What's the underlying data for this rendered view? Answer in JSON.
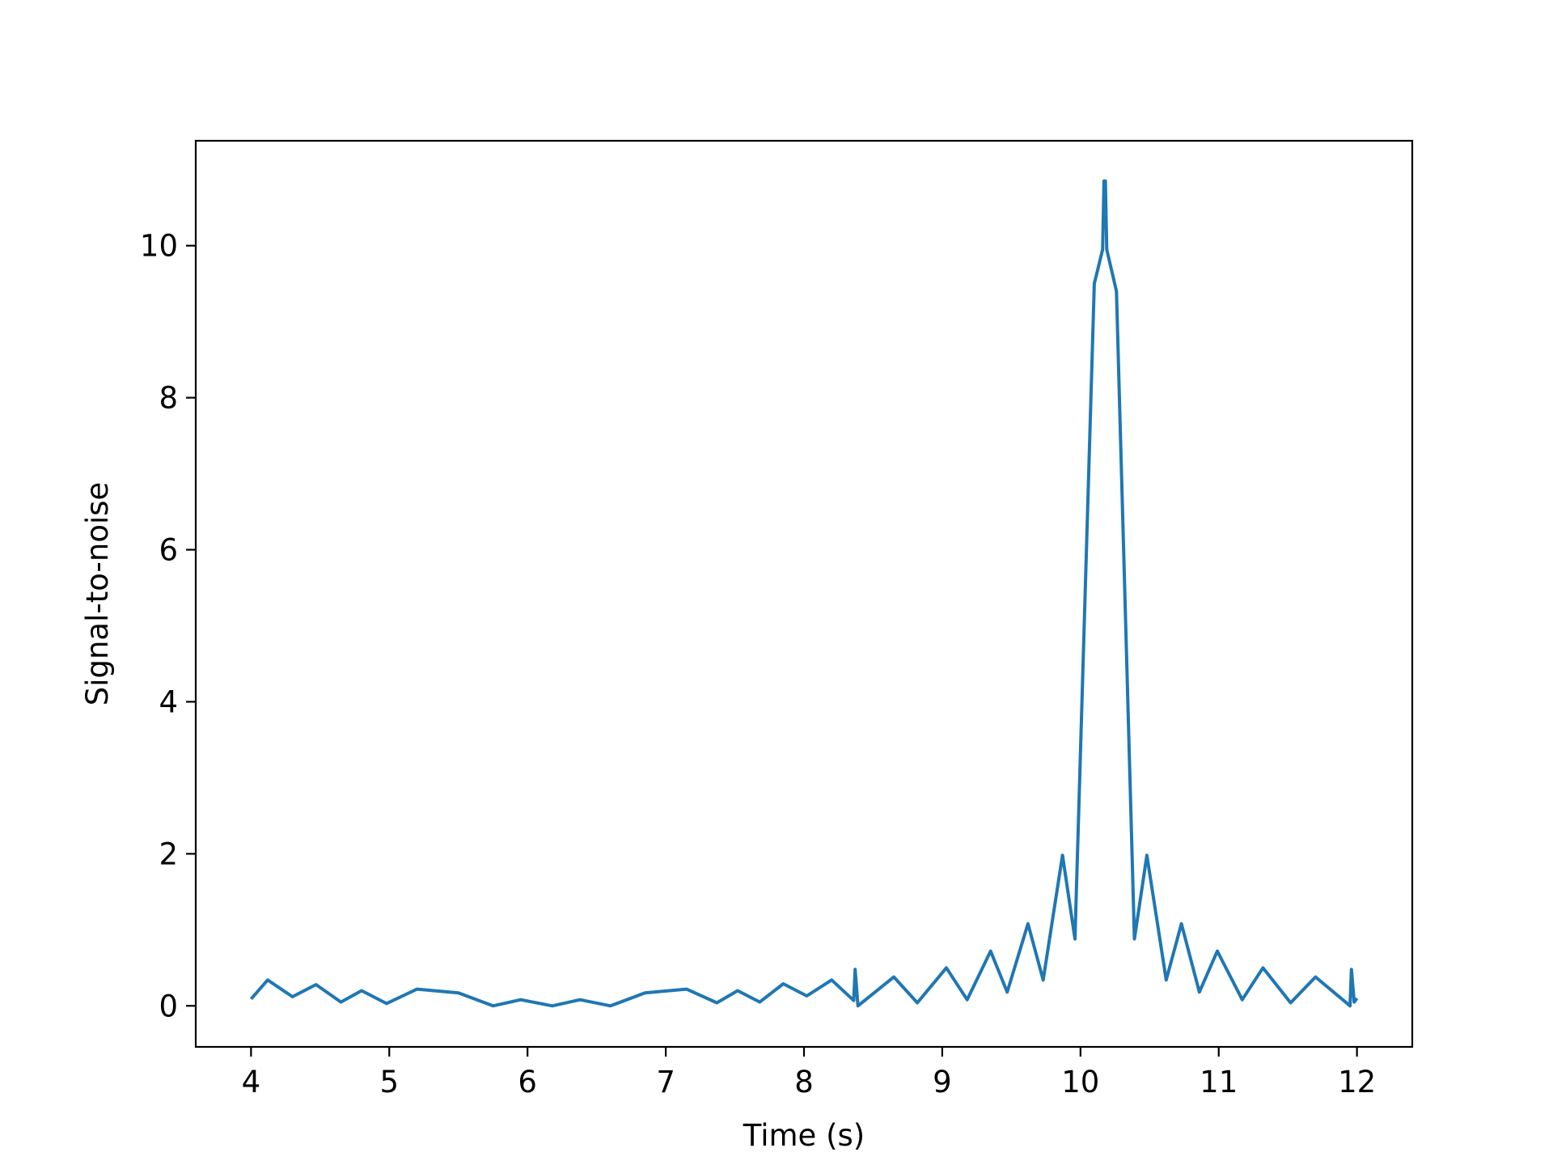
{
  "chart_data": {
    "type": "line",
    "title": "",
    "xlabel": "Time (s)",
    "ylabel": "Signal-to-noise",
    "xlim": [
      3.6,
      12.4
    ],
    "ylim": [
      -0.54,
      11.38
    ],
    "xticks": [
      4,
      5,
      6,
      7,
      8,
      9,
      10,
      11,
      12
    ],
    "yticks": [
      0,
      2,
      4,
      6,
      8,
      10
    ],
    "grid": false,
    "legend": "none",
    "series": [
      {
        "color": "#1f77b4",
        "points": [
          [
            4.0,
            0.09
          ],
          [
            4.12,
            0.34
          ],
          [
            4.3,
            0.12
          ],
          [
            4.47,
            0.28
          ],
          [
            4.65,
            0.05
          ],
          [
            4.8,
            0.2
          ],
          [
            4.98,
            0.03
          ],
          [
            5.2,
            0.22
          ],
          [
            5.5,
            0.17
          ],
          [
            5.75,
            0.0
          ],
          [
            5.95,
            0.08
          ],
          [
            6.18,
            0.0
          ],
          [
            6.38,
            0.08
          ],
          [
            6.6,
            0.0
          ],
          [
            6.85,
            0.17
          ],
          [
            7.15,
            0.22
          ],
          [
            7.37,
            0.04
          ],
          [
            7.52,
            0.2
          ],
          [
            7.68,
            0.05
          ],
          [
            7.85,
            0.29
          ],
          [
            8.02,
            0.13
          ],
          [
            8.2,
            0.34
          ],
          [
            8.36,
            0.07
          ],
          [
            8.37,
            0.48
          ],
          [
            8.39,
            0.0
          ],
          [
            8.65,
            0.38
          ],
          [
            8.82,
            0.04
          ],
          [
            9.03,
            0.5
          ],
          [
            9.18,
            0.08
          ],
          [
            9.35,
            0.72
          ],
          [
            9.47,
            0.18
          ],
          [
            9.62,
            1.08
          ],
          [
            9.73,
            0.34
          ],
          [
            9.87,
            1.98
          ],
          [
            9.96,
            0.88
          ],
          [
            10.1,
            9.5
          ],
          [
            10.16,
            9.95
          ],
          [
            10.17,
            10.85
          ],
          [
            10.18,
            10.85
          ],
          [
            10.19,
            9.95
          ],
          [
            10.26,
            9.4
          ],
          [
            10.39,
            0.88
          ],
          [
            10.48,
            1.98
          ],
          [
            10.62,
            0.34
          ],
          [
            10.73,
            1.08
          ],
          [
            10.86,
            0.18
          ],
          [
            10.99,
            0.72
          ],
          [
            11.17,
            0.08
          ],
          [
            11.32,
            0.5
          ],
          [
            11.52,
            0.04
          ],
          [
            11.7,
            0.38
          ],
          [
            11.95,
            0.0
          ],
          [
            11.96,
            0.48
          ],
          [
            11.98,
            0.05
          ],
          [
            12.0,
            0.1
          ]
        ]
      }
    ]
  }
}
